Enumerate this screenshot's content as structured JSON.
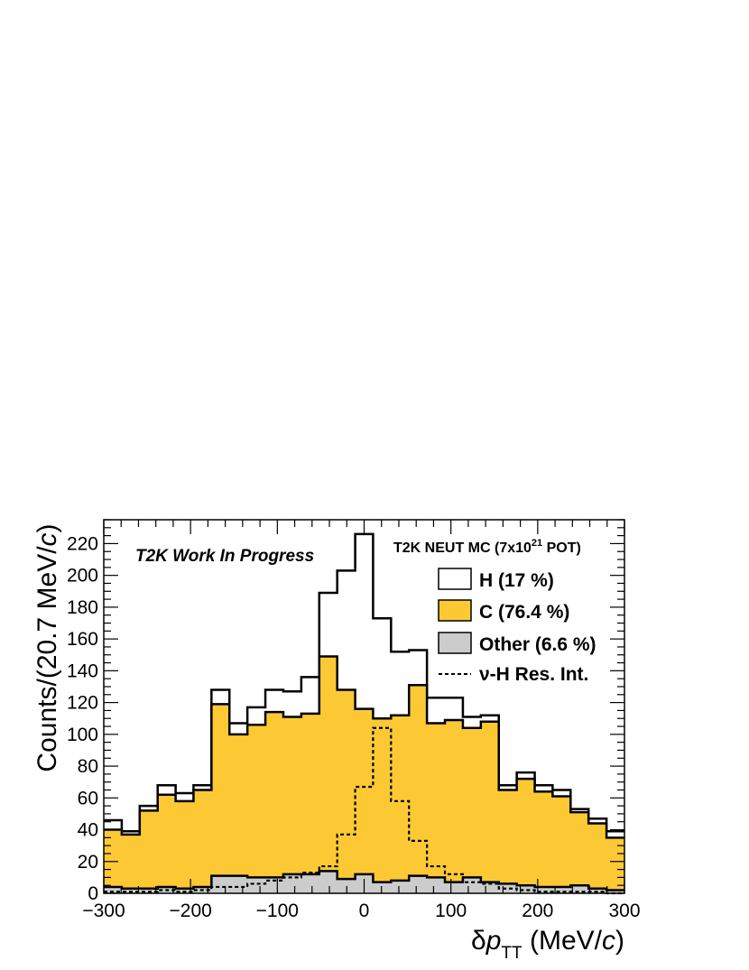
{
  "chart_data": {
    "type": "histogram",
    "xlabel_symbol": "δ",
    "xlabel_var": "p",
    "xlabel_sub": "TT",
    "xlabel_unit_open": " (MeV/",
    "xlabel_unit_var": "c",
    "xlabel_unit_close": ")",
    "ylabel_main": "Counts/(20.7 MeV/",
    "ylabel_var": "c",
    "ylabel_close": ")",
    "watermark": "T2K Work In Progress",
    "sample_label_main": "T2K NEUT MC (7x10",
    "sample_label_sup": "21",
    "sample_label_end": " POT)",
    "xlim": [
      -300,
      300
    ],
    "ylim": [
      0,
      235
    ],
    "x_ticks": [
      -300,
      -200,
      -100,
      0,
      100,
      200,
      300
    ],
    "x_tick_labels": [
      "−300",
      "−200",
      "−100",
      "0",
      "100",
      "200",
      "300"
    ],
    "y_ticks": [
      0,
      20,
      40,
      60,
      80,
      100,
      120,
      140,
      160,
      180,
      200,
      220
    ],
    "y_tick_labels": [
      "0",
      "20",
      "40",
      "60",
      "80",
      "100",
      "120",
      "140",
      "160",
      "180",
      "200",
      "220"
    ],
    "bin_edges": [
      -300,
      -279.3,
      -258.6,
      -237.9,
      -217.2,
      -196.6,
      -175.9,
      -155.2,
      -134.5,
      -113.8,
      -93.1,
      -72.4,
      -51.7,
      -31.0,
      -10.3,
      10.3,
      31.0,
      51.7,
      72.4,
      93.1,
      113.8,
      134.5,
      155.2,
      175.9,
      196.6,
      217.2,
      237.9,
      258.6,
      279.3,
      300
    ],
    "series": [
      {
        "name": "H (17 %)",
        "style": "outline",
        "fill": "#ffffff",
        "values": [
          46,
          39,
          55,
          68,
          63,
          68,
          128,
          107,
          117,
          128,
          127,
          136,
          189,
          203,
          226,
          173,
          152,
          153,
          123,
          123,
          111,
          112,
          68,
          76,
          68,
          65,
          53,
          47,
          39
        ]
      },
      {
        "name": "C (76.4 %)",
        "style": "filled",
        "fill": "#fcc934",
        "values": [
          40,
          37,
          52,
          62,
          58,
          65,
          119,
          100,
          106,
          114,
          111,
          113,
          149,
          128,
          116,
          110,
          112,
          131,
          107,
          109,
          104,
          108,
          65,
          72,
          64,
          61,
          51,
          44,
          35
        ]
      },
      {
        "name": "Other (6.6 %)",
        "style": "filled",
        "fill": "#cccccc",
        "values": [
          4,
          3,
          3,
          4,
          3,
          4,
          11,
          11,
          10,
          10,
          12,
          12,
          14,
          9,
          12,
          7,
          8,
          11,
          10,
          7,
          10,
          7,
          6,
          5,
          4,
          4,
          5,
          3,
          2
        ]
      },
      {
        "name": "ν-H Res. Int.",
        "style": "dashed",
        "fill": "none",
        "values": [
          1,
          1,
          1,
          2,
          1,
          2,
          4,
          4,
          6,
          8,
          10,
          13,
          17,
          37,
          67,
          104,
          58,
          33,
          17,
          12,
          7,
          6,
          3,
          2,
          1,
          1,
          1,
          1,
          0
        ]
      }
    ],
    "legend_position": "top-right"
  }
}
